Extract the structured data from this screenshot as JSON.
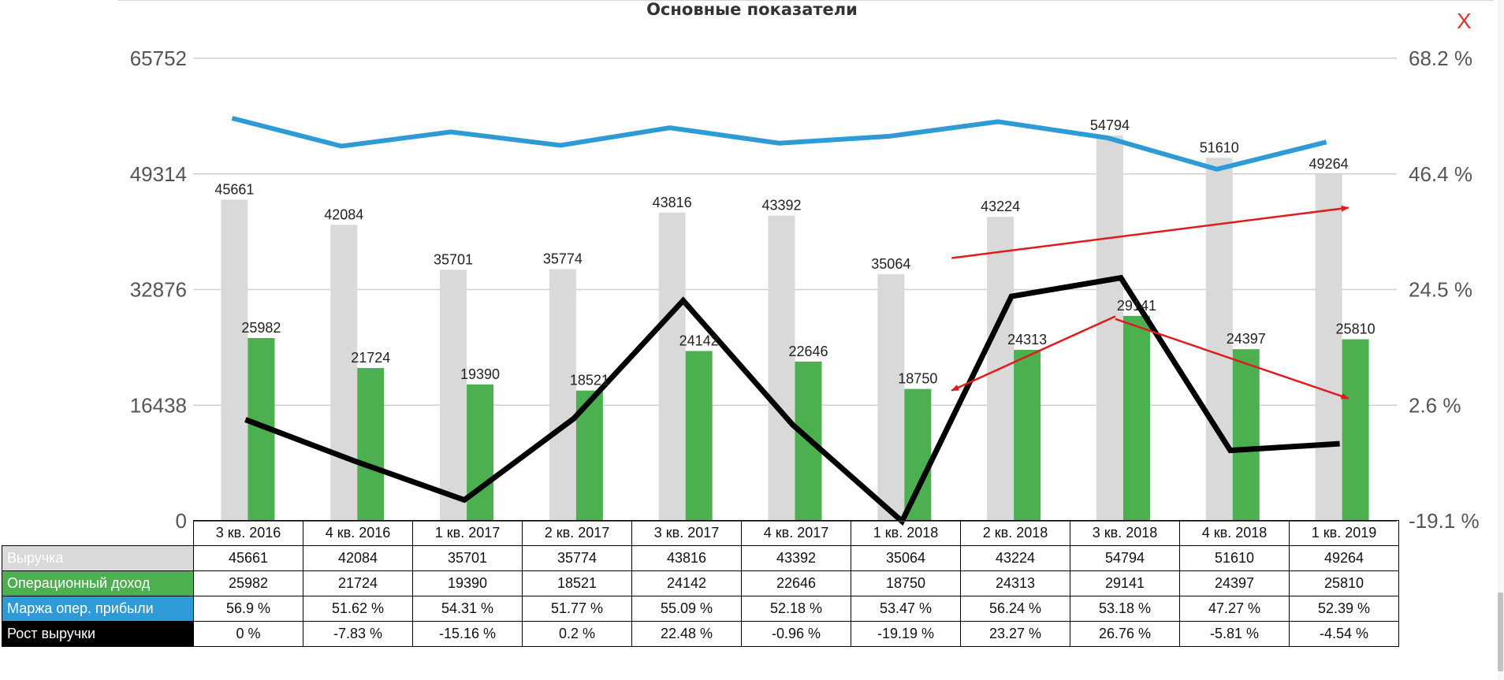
{
  "window": {
    "close_label": "X"
  },
  "chart_data": {
    "type": "bar+line",
    "title": "Основные показатели",
    "categories": [
      "3 кв. 2016",
      "4 кв. 2016",
      "1 кв. 2017",
      "2 кв. 2017",
      "3 кв. 2017",
      "4 кв. 2017",
      "1 кв. 2018",
      "2 кв. 2018",
      "3 кв. 2018",
      "4 кв. 2018",
      "1 кв. 2019"
    ],
    "left_axis": {
      "ticks": [
        "0",
        "16438",
        "32876",
        "49314",
        "65752"
      ],
      "range": [
        0,
        65752
      ]
    },
    "right_axis": {
      "ticks": [
        "-19.1 %",
        "2.6 %",
        "24.5 %",
        "46.4 %",
        "68.2 %"
      ],
      "range": [
        -19.1,
        68.2
      ]
    },
    "grid": true,
    "series": [
      {
        "name": "Выручка",
        "type": "bar",
        "axis": "left",
        "color": "#d9d9d9",
        "values": [
          45661,
          42084,
          35701,
          35774,
          43816,
          43392,
          35064,
          43224,
          54794,
          51610,
          49264
        ],
        "labels": [
          "45661",
          "42084",
          "35701",
          "35774",
          "43816",
          "43392",
          "35064",
          "43224",
          "54794",
          "51610",
          "49264"
        ]
      },
      {
        "name": "Операционный доход",
        "type": "bar",
        "axis": "left",
        "color": "#4caf50",
        "values": [
          25982,
          21724,
          19390,
          18521,
          24142,
          22646,
          18750,
          24313,
          29141,
          24397,
          25810
        ],
        "labels": [
          "25982",
          "21724",
          "19390",
          "18521",
          "24142",
          "22646",
          "18750",
          "24313",
          "29141",
          "24397",
          "25810"
        ]
      },
      {
        "name": "Маржа опер. прибыли",
        "type": "line",
        "axis": "right",
        "color": "#2e9bd6",
        "values": [
          56.9,
          51.62,
          54.31,
          51.77,
          55.09,
          52.18,
          53.47,
          56.24,
          53.18,
          47.27,
          52.39
        ],
        "labels": [
          "56.9 %",
          "51.62 %",
          "54.31 %",
          "51.77 %",
          "55.09 %",
          "52.18 %",
          "53.47 %",
          "56.24 %",
          "53.18 %",
          "47.27 %",
          "52.39 %"
        ]
      },
      {
        "name": "Рост выручки",
        "type": "line",
        "axis": "right",
        "color": "#000000",
        "values": [
          0,
          -7.83,
          -15.16,
          0.2,
          22.48,
          -0.96,
          -19.19,
          23.27,
          26.76,
          -5.81,
          -4.54
        ],
        "labels": [
          "0 %",
          "-7.83 %",
          "-15.16 %",
          "0.2 %",
          "22.48 %",
          "-0.96 %",
          "-19.19 %",
          "23.27 %",
          "26.76 %",
          "-5.81 %",
          "-4.54 %"
        ]
      }
    ],
    "annotations": [
      {
        "type": "arrow",
        "color": "#e01b1b",
        "from": [
          "1 кв. 2018",
          30.5
        ],
        "to": [
          "1 кв. 2019",
          40
        ]
      },
      {
        "type": "arrow",
        "color": "#e01b1b",
        "from": [
          "3 кв. 2018",
          19.5
        ],
        "to": [
          "1 кв. 2018",
          5.5
        ]
      },
      {
        "type": "arrow",
        "color": "#e01b1b",
        "from": [
          "3 кв. 2018",
          19
        ],
        "to": [
          "1 кв. 2019",
          4
        ]
      }
    ]
  }
}
